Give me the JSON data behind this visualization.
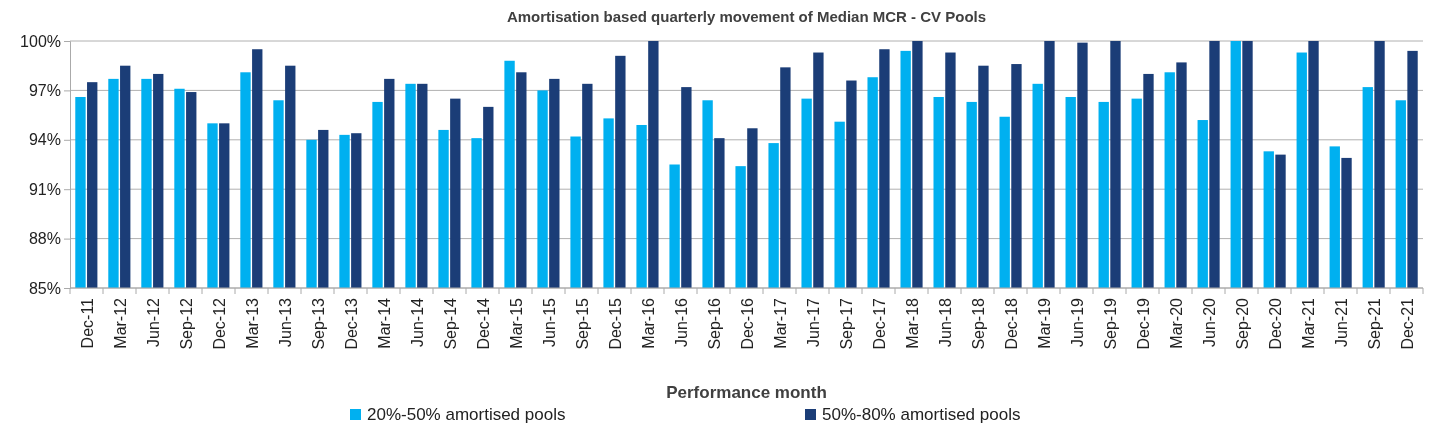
{
  "chart_data": {
    "type": "bar",
    "title": "Amortisation based quarterly movement of Median MCR - CV Pools",
    "xlabel": "Performance month",
    "categories": [
      "Dec-11",
      "Mar-12",
      "Jun-12",
      "Sep-12",
      "Dec-12",
      "Mar-13",
      "Jun-13",
      "Sep-13",
      "Dec-13",
      "Mar-14",
      "Jun-14",
      "Sep-14",
      "Dec-14",
      "Mar-15",
      "Jun-15",
      "Sep-15",
      "Dec-15",
      "Mar-16",
      "Jun-16",
      "Sep-16",
      "Dec-16",
      "Mar-17",
      "Jun-17",
      "Sep-17",
      "Dec-17",
      "Mar-18",
      "Jun-18",
      "Sep-18",
      "Dec-18",
      "Mar-19",
      "Jun-19",
      "Sep-19",
      "Dec-19",
      "Mar-20",
      "Jun-20",
      "Sep-20",
      "Dec-20",
      "Mar-21",
      "Jun-21",
      "Sep-21",
      "Dec-21"
    ],
    "series": [
      {
        "name": "20%-50% amortised pools",
        "color": "#00b0f0",
        "values": [
          96.6,
          97.7,
          97.7,
          97.1,
          95.0,
          98.1,
          96.4,
          94.0,
          94.3,
          96.3,
          97.4,
          94.6,
          94.1,
          98.8,
          97.0,
          94.2,
          95.3,
          94.9,
          92.5,
          96.4,
          92.4,
          93.8,
          96.5,
          95.1,
          97.8,
          99.4,
          96.6,
          96.3,
          95.4,
          97.4,
          96.6,
          96.3,
          96.5,
          98.1,
          95.2,
          100,
          93.3,
          99.3,
          93.6,
          97.2,
          96.4
        ]
      },
      {
        "name": "50%-80% amortised pools",
        "color": "#1b3d77",
        "values": [
          97.5,
          98.5,
          98.0,
          96.9,
          95.0,
          99.5,
          98.5,
          94.6,
          94.4,
          97.7,
          97.4,
          96.5,
          96.0,
          98.1,
          97.7,
          97.4,
          99.1,
          100,
          97.2,
          94.1,
          94.7,
          98.4,
          99.3,
          97.6,
          99.5,
          100,
          99.3,
          98.5,
          98.6,
          100,
          99.9,
          100,
          98.0,
          98.7,
          100,
          100,
          93.1,
          100,
          92.9,
          100,
          99.4
        ]
      }
    ],
    "ylim": [
      85,
      100
    ],
    "yticks": [
      {
        "value": 85,
        "label": "85%"
      },
      {
        "value": 88,
        "label": "88%"
      },
      {
        "value": 91,
        "label": "91%"
      },
      {
        "value": 94,
        "label": "94%"
      },
      {
        "value": 97,
        "label": "97%"
      },
      {
        "value": 100,
        "label": "100%"
      }
    ],
    "grid": "y",
    "legend": "bottom"
  }
}
